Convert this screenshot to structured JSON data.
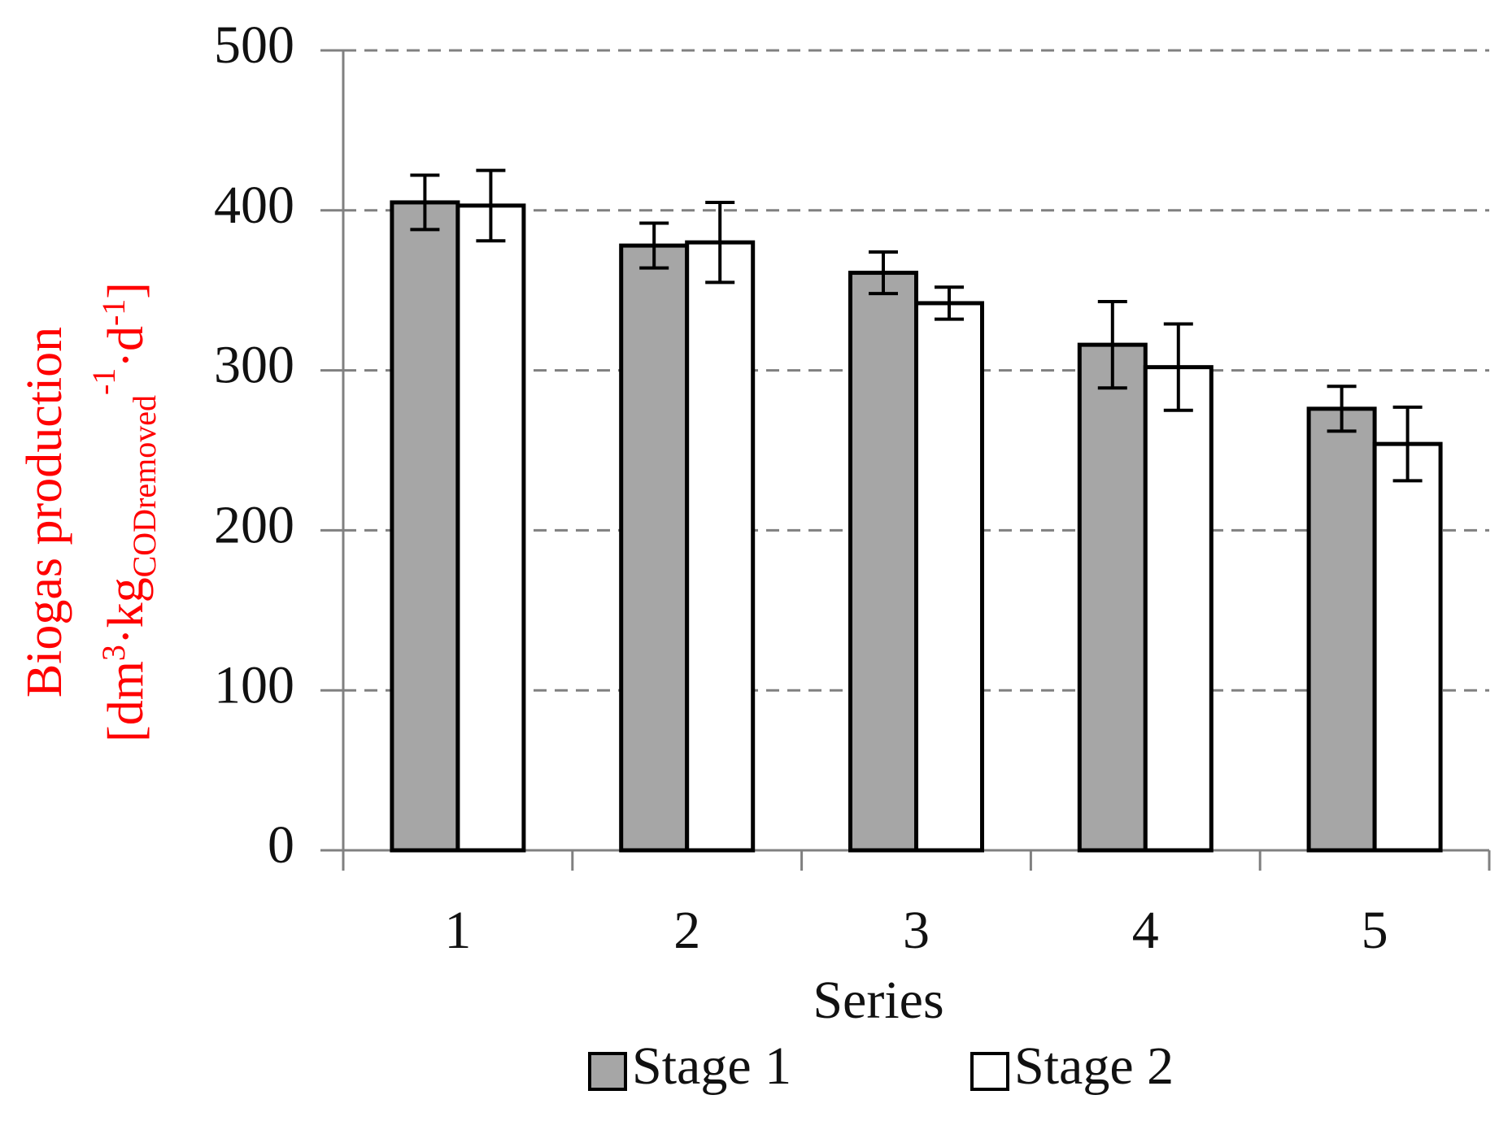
{
  "chart_data": {
    "type": "bar",
    "y_label": {
      "line1": "Biogas production",
      "parts": [
        "[dm",
        "3",
        "·kg",
        "CODremoved",
        "-1",
        "·d",
        "-1",
        "]"
      ]
    },
    "x_label": "Series",
    "categories": [
      "1",
      "2",
      "3",
      "4",
      "5"
    ],
    "series": [
      {
        "name": "Stage 1",
        "color": "#a6a6a6",
        "values": [
          405,
          378,
          361,
          316,
          276
        ],
        "errors": [
          17,
          14,
          13,
          27,
          14
        ]
      },
      {
        "name": "Stage 2",
        "color": "#ffffff",
        "values": [
          403,
          380,
          342,
          302,
          254
        ],
        "errors": [
          22,
          25,
          10,
          27,
          23
        ]
      }
    ],
    "ylim": [
      0,
      500
    ],
    "yticks": [
      0,
      100,
      200,
      300,
      400,
      500
    ],
    "grid": true
  }
}
